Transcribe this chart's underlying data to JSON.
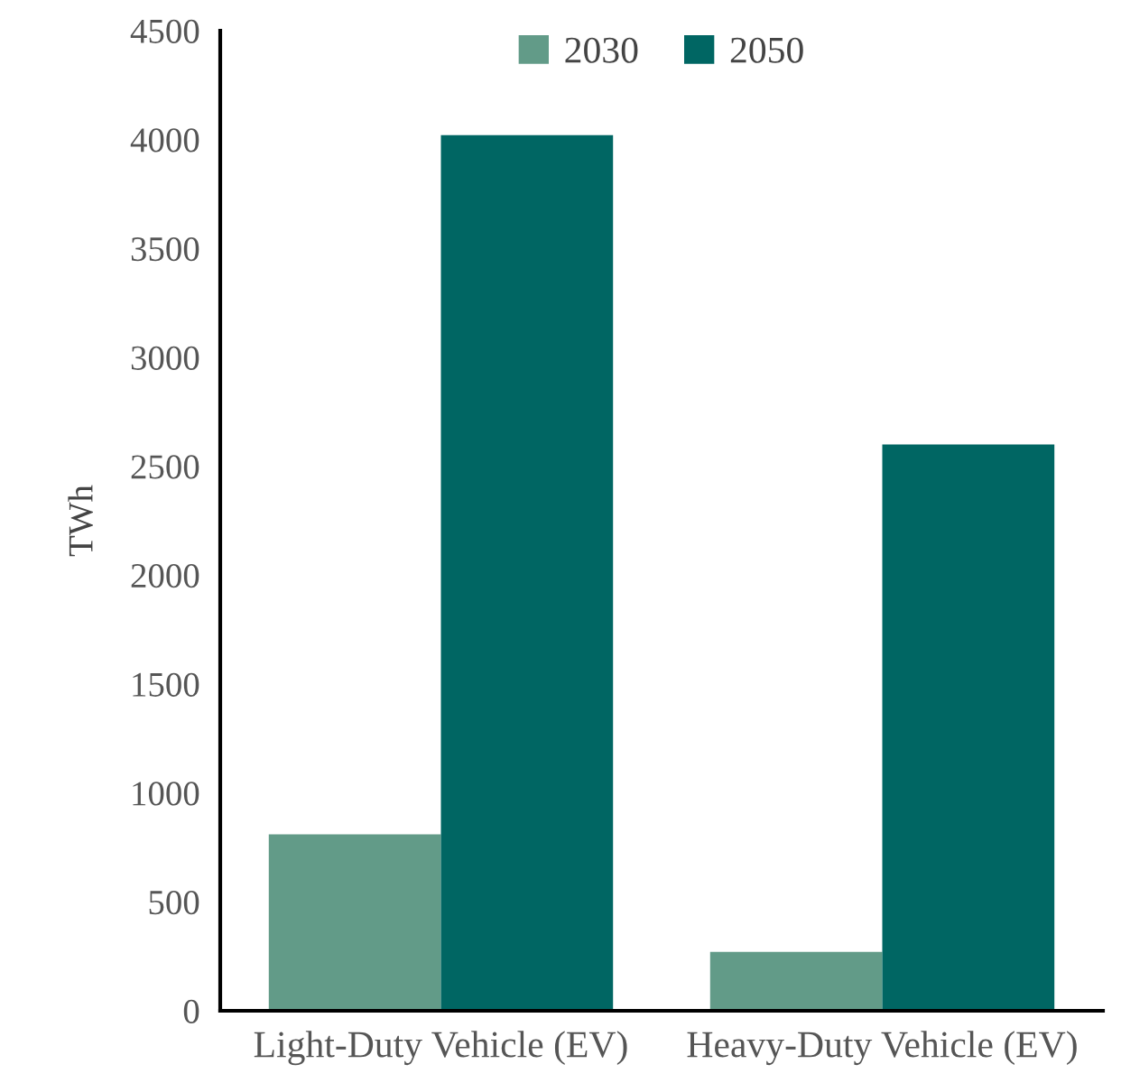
{
  "chart_data": {
    "type": "bar",
    "ylabel": "TWh",
    "categories": [
      "Light-Duty Vehicle (EV)",
      "Heavy-Duty Vehicle (EV)"
    ],
    "series": [
      {
        "name": "2030",
        "color": "#629b88",
        "values": [
          810,
          270
        ]
      },
      {
        "name": "2050",
        "color": "#006663",
        "values": [
          4020,
          2600
        ]
      }
    ],
    "ylim": [
      0,
      4500
    ],
    "yticks": [
      0,
      500,
      1000,
      1500,
      2000,
      2500,
      3000,
      3500,
      4000,
      4500
    ],
    "grid": false,
    "legend": "top"
  }
}
